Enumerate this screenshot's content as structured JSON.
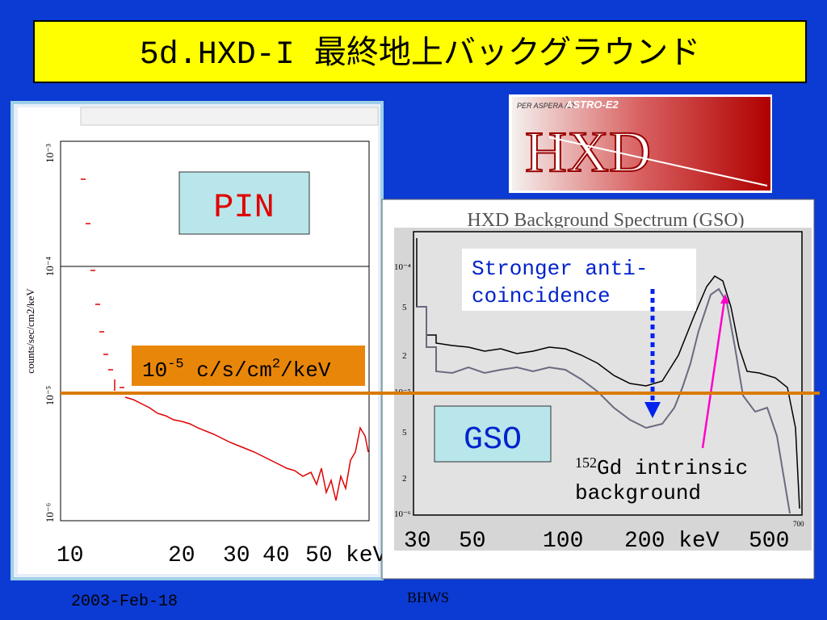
{
  "title": "5d.HXD-I 最終地上バックグラウンド",
  "logo": {
    "motto": "PER ASPERA AD",
    "mission": "ASTRO-E2",
    "name": "HXD"
  },
  "pin_panel": {
    "label": "PIN",
    "y_axis_label": "counts/sec/cm2/keV",
    "y_ticks": [
      "10⁻³",
      "10⁻⁴",
      "10⁻⁵",
      "10⁻⁶"
    ],
    "x_labels": [
      "10",
      "20",
      "30",
      "40",
      "50",
      "keV"
    ],
    "level": {
      "base": "10",
      "exp": "-5",
      "unit": " c/s/cm",
      "unit_exp": "2",
      "unit_tail": "/keV"
    }
  },
  "gso_panel": {
    "title": "HXD Background Spectrum (GSO)",
    "label": "GSO",
    "y_ticks": [
      "10⁻⁴",
      "5",
      "2",
      "10⁻⁵",
      "5",
      "2",
      "10⁻⁶"
    ],
    "x_labels": [
      "30",
      "50",
      "100",
      "200 keV",
      "500",
      "700"
    ],
    "note_anti": [
      "Stronger anti-",
      "coincidence"
    ],
    "note_gd": {
      "mass": "152",
      "line1": "Gd intrinsic",
      "line2": "background"
    }
  },
  "footer": {
    "date": "2003-Feb-18",
    "venue": "BHWS"
  }
}
